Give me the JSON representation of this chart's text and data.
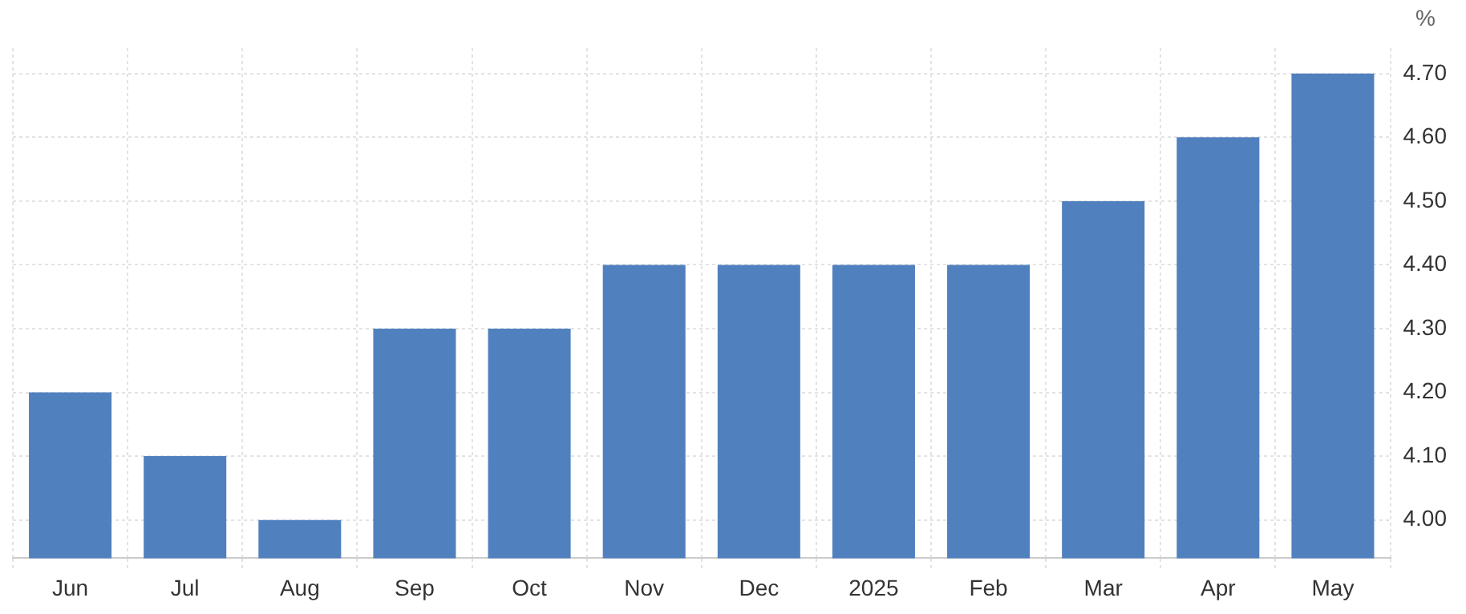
{
  "chart_data": {
    "type": "bar",
    "ylabel": "%",
    "categories": [
      "Jun",
      "Jul",
      "Aug",
      "Sep",
      "Oct",
      "Nov",
      "Dec",
      "2025",
      "Feb",
      "Mar",
      "Apr",
      "May"
    ],
    "values": [
      4.2,
      4.1,
      4.0,
      4.3,
      4.3,
      4.4,
      4.4,
      4.4,
      4.4,
      4.5,
      4.6,
      4.7
    ],
    "color": "#5180be",
    "ylim": [
      3.94,
      4.74
    ],
    "yticks": [
      {
        "value": 4.0,
        "label": "4.00"
      },
      {
        "value": 4.1,
        "label": "4.10"
      },
      {
        "value": 4.2,
        "label": "4.20"
      },
      {
        "value": 4.3,
        "label": "4.30"
      },
      {
        "value": 4.4,
        "label": "4.40"
      },
      {
        "value": 4.5,
        "label": "4.50"
      },
      {
        "value": 4.6,
        "label": "4.60"
      },
      {
        "value": 4.7,
        "label": "4.70"
      }
    ],
    "grid": true
  }
}
